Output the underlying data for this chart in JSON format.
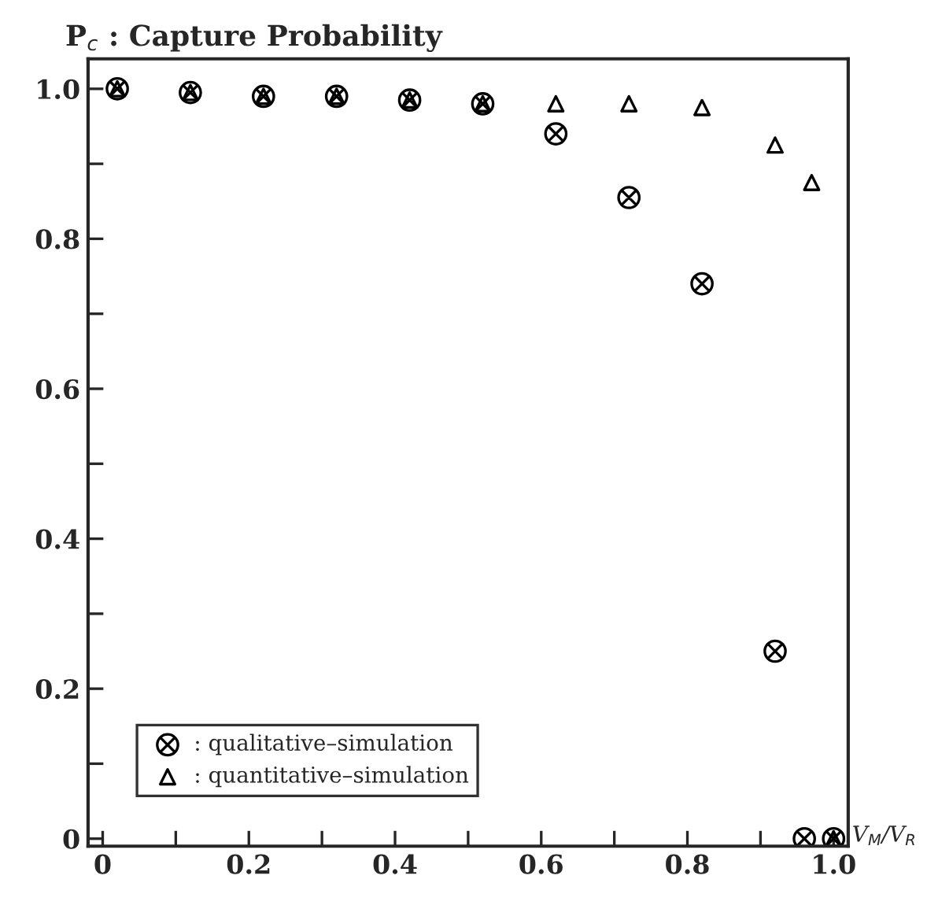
{
  "chart_data": {
    "type": "scatter",
    "title": "P$_{c}$ : Capture Probability",
    "xlabel": "V$_{M}$/V$_{R}$",
    "x": [
      0.02,
      0.12,
      0.22,
      0.32,
      0.42,
      0.52,
      0.62,
      0.72,
      0.82,
      0.92,
      0.96,
      1.0
    ],
    "series": [
      {
        "name": ": qualitative–simulation",
        "color": "#000000",
        "marker": "cross",
        "values": [
          1.0,
          0.995,
          0.99,
          0.99,
          0.985,
          0.98,
          0.94,
          0.855,
          0.74,
          0.25,
          0.0,
          0.0
        ]
      },
      {
        "name": ": quantitative–simulation",
        "color": "#000000",
        "marker": "triangle",
        "x": [
          0.02,
          0.12,
          0.22,
          0.32,
          0.42,
          0.52,
          0.62,
          0.72,
          0.82,
          0.92,
          0.97,
          1.0
        ],
        "values": [
          1.0,
          0.995,
          0.99,
          0.99,
          0.985,
          0.98,
          0.98,
          0.98,
          0.975,
          0.925,
          0.875,
          0.0
        ]
      }
    ],
    "xlim": [
      -0.02,
      1.02
    ],
    "ylim": [
      -0.01,
      1.04
    ],
    "xticks": [
      0,
      {
        "value": 0.1,
        "label": null
      },
      0.2,
      {
        "value": 0.3,
        "label": null
      },
      0.4,
      {
        "value": 0.5,
        "label": null
      },
      0.6,
      {
        "value": 0.7,
        "label": null
      },
      0.8,
      {
        "value": 0.9,
        "label": null
      },
      {
        "value": 1.0,
        "label": "1.0"
      }
    ],
    "yticks": [
      0,
      {
        "value": 0.1,
        "label": null
      },
      0.2,
      {
        "value": 0.3,
        "label": null
      },
      0.4,
      {
        "value": 0.5,
        "label": null
      },
      0.6,
      {
        "value": 0.7,
        "label": null
      },
      0.8,
      {
        "value": 0.9,
        "label": null
      },
      {
        "value": 1.0,
        "label": "1.0"
      }
    ],
    "grid": false,
    "legend": "bottom left"
  }
}
